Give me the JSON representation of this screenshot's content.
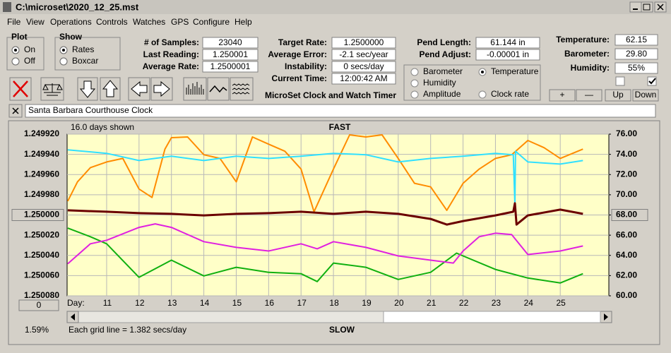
{
  "window": {
    "title": "C:\\microset\\2020_12_25.mst"
  },
  "menu": [
    "File",
    "View",
    "Operations",
    "Controls",
    "Watches",
    "GPS",
    "Configure",
    "Help"
  ],
  "plot_group": {
    "title": "Plot",
    "options": [
      "On",
      "Off"
    ],
    "selected": 0
  },
  "show_group": {
    "title": "Show",
    "options": [
      "Rates",
      "Boxcar"
    ],
    "selected": 0
  },
  "columns": [
    [
      {
        "label": "# of Samples:",
        "value": "23040"
      },
      {
        "label": "Last Reading:",
        "value": "1.250001"
      },
      {
        "label": "Average Rate:",
        "value": "1.2500001"
      }
    ],
    [
      {
        "label": "Target Rate:",
        "value": "1.2500000"
      },
      {
        "label": "Average Error:",
        "value": "-2.1 sec/year"
      },
      {
        "label": "Instability:",
        "value": "0 secs/day"
      },
      {
        "label": "Current Time:",
        "value": "12:00:42 AM"
      }
    ],
    [
      {
        "label": "Pend Length:",
        "value": "61.144 in"
      },
      {
        "label": "Pend Adjust:",
        "value": "-0.00001 in"
      }
    ],
    [
      {
        "label": "Temperature:",
        "value": "62.15"
      },
      {
        "label": "Barometer:",
        "value": "29.80"
      },
      {
        "label": "Humidity:",
        "value": "55%"
      }
    ]
  ],
  "app_name": "MicroSet Clock and Watch Timer",
  "trace_options": {
    "options": [
      {
        "label": "Barometer",
        "color": "#ff8c00"
      },
      {
        "label": "Temperature",
        "color": "#10a010"
      },
      {
        "label": "Humidity",
        "color": "#d020d0"
      },
      {
        "label": "Amplitude",
        "color": "#20d8f0"
      },
      {
        "label": "Clock rate",
        "color": "#6b0000"
      }
    ],
    "selected": 1
  },
  "checkboxes": [
    false,
    true
  ],
  "buttons": [
    "+",
    "—",
    "Up",
    "Down"
  ],
  "clock_name": "Santa Barbara Courthouse Clock",
  "chart_data": {
    "type": "line",
    "top_left": "16.0 days shown",
    "top_label": "FAST",
    "bottom_label": "SLOW",
    "grid_note": "Each grid line = 1.382 secs/day",
    "x_label": "Day:",
    "offset_button": "0",
    "percent": "1.59%",
    "xlim": [
      9.78,
      26.5
    ],
    "xticks": [
      11,
      12,
      13,
      14,
      15,
      16,
      17,
      18,
      19,
      20,
      21,
      22,
      23,
      24,
      25
    ],
    "ylim": [
      1.25008,
      1.24992
    ],
    "yticks": [
      {
        "value": 1.24992,
        "label": "1.249920"
      },
      {
        "value": 1.24994,
        "label": "1.249940"
      },
      {
        "value": 1.24996,
        "label": "1.249960"
      },
      {
        "value": 1.24998,
        "label": "1.249980"
      },
      {
        "value": 1.25,
        "label": "1.250000"
      },
      {
        "value": 1.25002,
        "label": "1.250020"
      },
      {
        "value": 1.25004,
        "label": "1.250040"
      },
      {
        "value": 1.25006,
        "label": "1.250060"
      },
      {
        "value": 1.25008,
        "label": "1.250080"
      }
    ],
    "y2lim": [
      60,
      76
    ],
    "y2ticks": [
      {
        "value": 76,
        "label": "76.00"
      },
      {
        "value": 74,
        "label": "74.00"
      },
      {
        "value": 72,
        "label": "72.00"
      },
      {
        "value": 70,
        "label": "70.00"
      },
      {
        "value": 68,
        "label": "68.00"
      },
      {
        "value": 66,
        "label": "66.00"
      },
      {
        "value": 64,
        "label": "64.00"
      },
      {
        "value": 62,
        "label": "62.00"
      },
      {
        "value": 60,
        "label": "60.00"
      }
    ],
    "grid": true,
    "series": [
      {
        "name": "Temperature",
        "color": "#10b010",
        "axis": "y2",
        "x": [
          9.8,
          10.5,
          11,
          12,
          13,
          14,
          15,
          16,
          17,
          17.5,
          18,
          19,
          20,
          21,
          21.8,
          22,
          23,
          24,
          25,
          25.7
        ],
        "values": [
          66.7,
          65.85,
          65.15,
          61.83,
          63.53,
          61.97,
          62.82,
          62.33,
          62.19,
          61.41,
          63.24,
          62.82,
          61.62,
          62.33,
          64.23,
          63.95,
          62.61,
          61.76,
          61.27,
          62.19
        ]
      },
      {
        "name": "Humidity",
        "color": "#e020e0",
        "axis": "y2",
        "x": [
          9.8,
          10.5,
          11,
          12,
          12.5,
          13,
          14,
          15,
          16,
          17,
          17.5,
          18,
          19,
          20,
          21,
          21.7,
          22,
          22.5,
          23,
          23.5,
          24,
          25,
          25.7
        ],
        "values": [
          63.17,
          65.15,
          65.5,
          66.77,
          67.12,
          66.77,
          65.36,
          64.79,
          64.44,
          65.15,
          64.65,
          65.36,
          64.79,
          63.95,
          63.53,
          63.24,
          64.44,
          65.85,
          66.2,
          66.06,
          64.09,
          64.44,
          64.93
        ]
      },
      {
        "name": "Barometer",
        "color": "#ff8c00",
        "axis": "y2",
        "x": [
          9.8,
          10.1,
          10.5,
          11,
          11.5,
          12,
          12.4,
          12.8,
          13,
          13.5,
          14,
          14.5,
          15,
          15.5,
          16,
          16.5,
          17,
          17.4,
          18,
          18.5,
          19,
          19.5,
          20,
          20.5,
          21,
          21.5,
          22,
          22.5,
          23,
          23.5,
          24,
          24.5,
          25,
          25.7
        ],
        "values": [
          69.37,
          71.28,
          72.69,
          73.25,
          73.6,
          70.57,
          69.73,
          74.52,
          75.65,
          75.72,
          73.96,
          73.6,
          71.28,
          75.72,
          75.01,
          74.31,
          72.55,
          68.32,
          72.55,
          75.93,
          75.72,
          75.93,
          73.6,
          71.14,
          70.78,
          68.46,
          71.14,
          72.55,
          73.6,
          73.96,
          75.37,
          74.66,
          73.6,
          74.52
        ]
      },
      {
        "name": "Amplitude",
        "color": "#30e0ff",
        "axis": "y2",
        "x": [
          9.8,
          11,
          12,
          13,
          14,
          15,
          16,
          17,
          18,
          19,
          20,
          21,
          22,
          23,
          23.55,
          23.6,
          23.62,
          24,
          25,
          25.7
        ],
        "values": [
          74.45,
          74.1,
          73.39,
          73.82,
          73.39,
          73.82,
          73.6,
          73.82,
          74.1,
          73.96,
          73.25,
          73.6,
          73.82,
          74.1,
          73.96,
          69.02,
          74.31,
          73.25,
          73.04,
          73.39
        ]
      },
      {
        "name": "Clock rate",
        "color": "#6b0000",
        "axis": "y",
        "x": [
          9.8,
          11,
          12,
          13,
          14,
          15,
          16,
          17,
          18,
          19,
          20,
          21,
          21.5,
          22,
          23,
          23.55,
          23.6,
          23.65,
          24,
          25,
          25.7
        ],
        "values": [
          1.2499954,
          1.2499968,
          1.2499982,
          1.2499989,
          1.2500004,
          1.2499989,
          1.2499982,
          1.2499968,
          1.2499989,
          1.2499968,
          1.2499989,
          1.2500039,
          1.2500095,
          1.250006,
          1.2500004,
          1.2499968,
          1.2499884,
          1.2500095,
          1.2500004,
          1.2499947,
          1.2499989
        ]
      }
    ]
  }
}
